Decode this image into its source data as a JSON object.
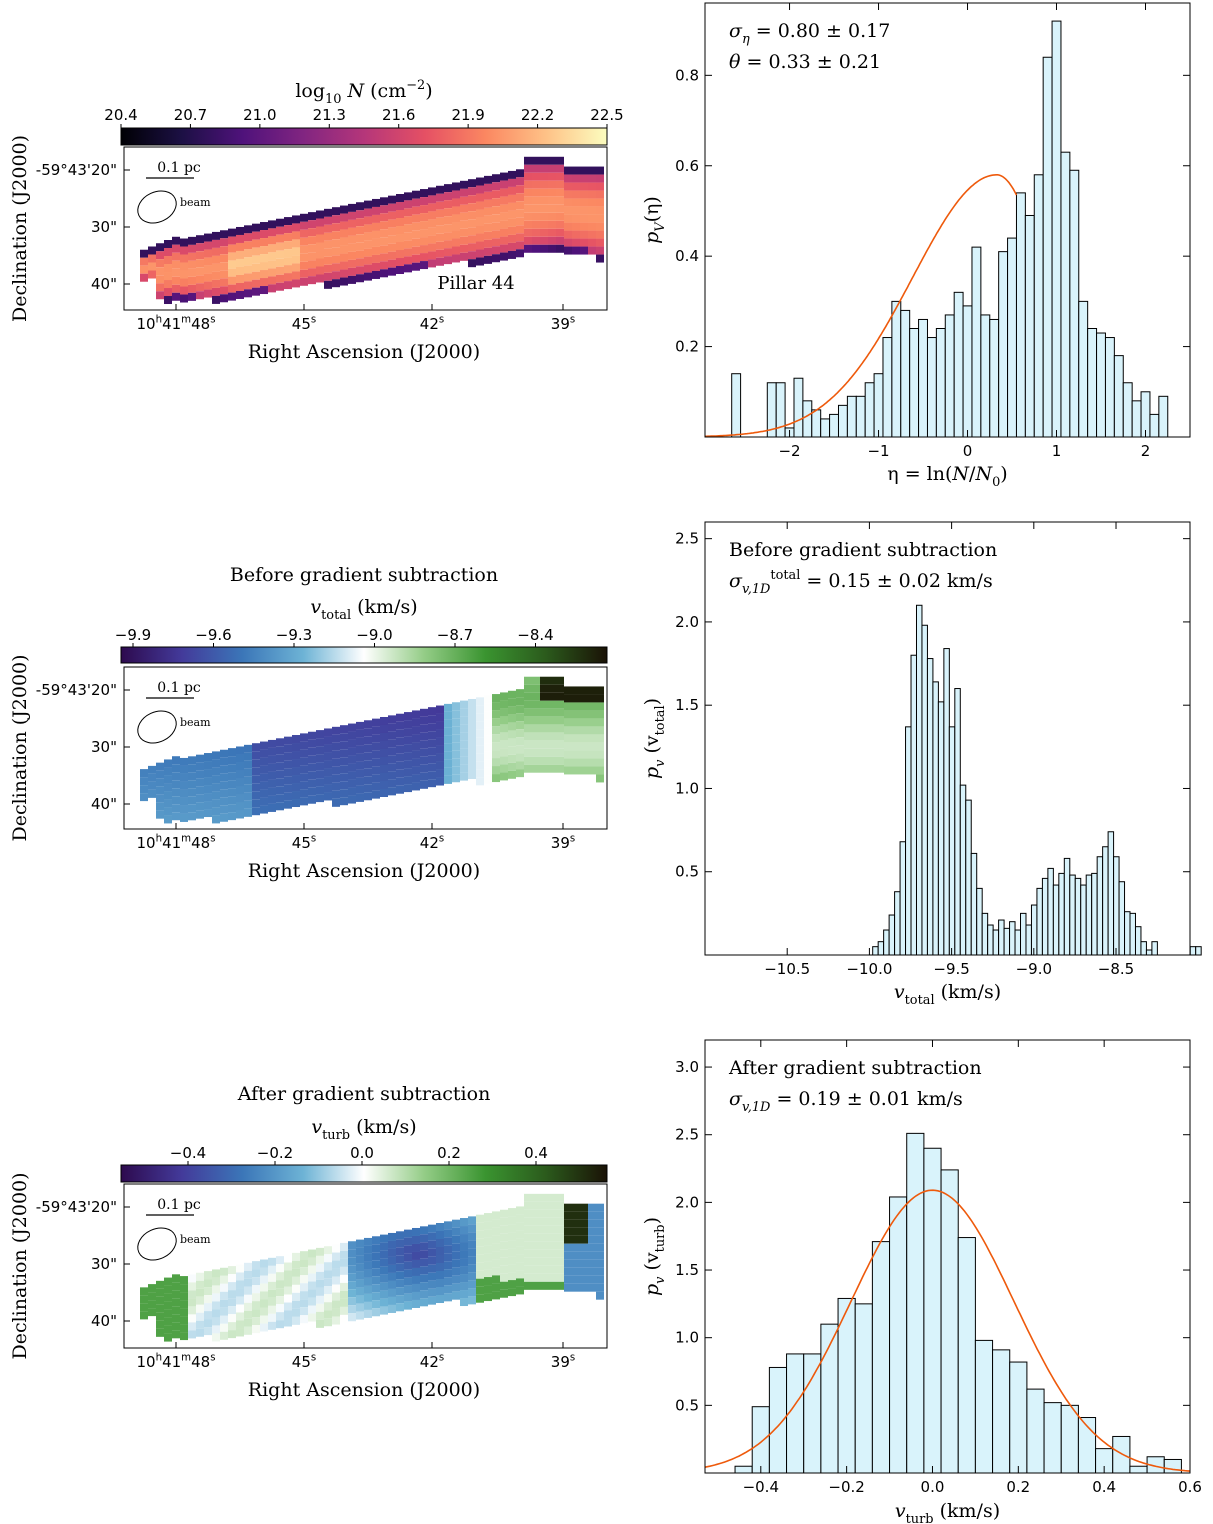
{
  "maps": [
    {
      "title": "",
      "colorbar": {
        "label_base": "log",
        "label_sub": "10",
        "label_var": "N",
        "label_unit": "(cm",
        "label_exp": "−2",
        "label_close": ")",
        "ticks": [
          "20.4",
          "20.7",
          "21.0",
          "21.3",
          "21.6",
          "21.9",
          "22.2",
          "22.5"
        ],
        "colormap": "magma"
      },
      "ylabel": "Declination (J2000)",
      "xlabel": "Right Ascension (J2000)",
      "ytick_labels": [
        "-59°43'20\"",
        "30\"",
        "40\""
      ],
      "xtick_labels": [
        {
          "main": "10",
          "sup1": "h",
          "mid": "41",
          "sup2": "m",
          "tail": "48",
          "sup3": "s"
        },
        {
          "main": "45",
          "sup3": "s"
        },
        {
          "main": "42",
          "sup3": "s"
        },
        {
          "main": "39",
          "sup3": "s"
        }
      ],
      "scalebar_label": "0.1 pc",
      "beam_label": "beam",
      "annotation": "Pillar 44"
    },
    {
      "title": "Before gradient subtraction",
      "colorbar": {
        "label_var": "v",
        "label_sub": "total",
        "label_unit": "(km/s)",
        "ticks": [
          "−9.9",
          "−9.6",
          "−9.3",
          "−9.0",
          "−8.7",
          "−8.4"
        ],
        "colormap": "diverging blue-white-green"
      },
      "ylabel": "Declination (J2000)",
      "xlabel": "Right Ascension (J2000)",
      "ytick_labels": [
        "-59°43'20\"",
        "30\"",
        "40\""
      ],
      "xtick_labels": [
        {
          "main": "10",
          "sup1": "h",
          "mid": "41",
          "sup2": "m",
          "tail": "48",
          "sup3": "s"
        },
        {
          "main": "45",
          "sup3": "s"
        },
        {
          "main": "42",
          "sup3": "s"
        },
        {
          "main": "39",
          "sup3": "s"
        }
      ],
      "scalebar_label": "0.1 pc",
      "beam_label": "beam"
    },
    {
      "title": "After gradient subtraction",
      "colorbar": {
        "label_var": "v",
        "label_sub": "turb",
        "label_unit": "(km/s)",
        "ticks": [
          "−0.4",
          "−0.2",
          "0.0",
          "0.2",
          "0.4"
        ],
        "colormap": "diverging blue-white-green"
      },
      "ylabel": "Declination (J2000)",
      "xlabel": "Right Ascension (J2000)",
      "ytick_labels": [
        "-59°43'20\"",
        "30\"",
        "40\""
      ],
      "xtick_labels": [
        {
          "main": "10",
          "sup1": "h",
          "mid": "41",
          "sup2": "m",
          "tail": "48",
          "sup3": "s"
        },
        {
          "main": "45",
          "sup3": "s"
        },
        {
          "main": "42",
          "sup3": "s"
        },
        {
          "main": "39",
          "sup3": "s"
        }
      ],
      "scalebar_label": "0.1 pc",
      "beam_label": "beam"
    }
  ],
  "colors": {
    "bar_fill": "#d9f3fb",
    "bar_edge": "#000000",
    "fit_line": "#ee5a0c",
    "magma": [
      "#000004",
      "#1c1044",
      "#4f127b",
      "#812581",
      "#b5367a",
      "#e55064",
      "#fb8761",
      "#fec287",
      "#fcfdbf"
    ],
    "diverging": [
      "#2d0a4e",
      "#433a9a",
      "#3b76b8",
      "#6db3d5",
      "#ffffff",
      "#93cc86",
      "#3a9430",
      "#2b5a1c",
      "#1a1206"
    ]
  },
  "chart_data": [
    {
      "type": "bar",
      "subtype": "histogram",
      "annotations": [
        "σ_η = 0.80 ± 0.17",
        "θ = 0.33 ± 0.21"
      ],
      "annotation_parts": [
        {
          "a": "σ",
          "sub": "η",
          "b": " = 0.80 ± 0.17"
        },
        {
          "a": "θ",
          "b": " = 0.33 ± 0.21"
        }
      ],
      "xlabel": "η = ln(N/N0)",
      "xlabel_parts": {
        "a": "η = ln(",
        "b": "N",
        "c": "/",
        "d": "N",
        "sub": "0",
        "e": ")"
      },
      "ylabel": "pV(η)",
      "ylabel_parts": {
        "a": "p",
        "sub": "V",
        "b": "(η)"
      },
      "xlim": [
        -2.95,
        2.5
      ],
      "ylim": [
        0,
        0.96
      ],
      "xticks": [
        -2,
        -1,
        0,
        1,
        2
      ],
      "xtick_labels": [
        "−2",
        "−1",
        "0",
        "1",
        "2"
      ],
      "yticks": [
        0.2,
        0.4,
        0.6,
        0.8
      ],
      "ytick_labels": [
        "0.2",
        "0.4",
        "0.6",
        "0.8"
      ],
      "bin_start": -2.65,
      "bin_width": 0.1,
      "values": [
        0.14,
        0.0,
        0.0,
        0.0,
        0.12,
        0.12,
        0.02,
        0.13,
        0.08,
        0.06,
        0.04,
        0.05,
        0.07,
        0.09,
        0.09,
        0.12,
        0.14,
        0.22,
        0.3,
        0.28,
        0.24,
        0.26,
        0.22,
        0.24,
        0.27,
        0.32,
        0.29,
        0.42,
        0.27,
        0.26,
        0.41,
        0.44,
        0.54,
        0.49,
        0.58,
        0.84,
        0.92,
        0.63,
        0.59,
        0.3,
        0.24,
        0.23,
        0.22,
        0.18,
        0.12,
        0.08,
        0.1,
        0.05,
        0.09
      ],
      "fit": {
        "type": "skew-normal",
        "x_range": [
          -2.95,
          0.55
        ],
        "peak_x": 0.33,
        "peak_y": 0.58
      }
    },
    {
      "type": "bar",
      "subtype": "histogram",
      "annotations": [
        "Before gradient subtraction",
        "σ_v,1D^total = 0.15 ± 0.02 km/s"
      ],
      "annotation_parts": [
        {
          "text": "Before gradient subtraction"
        },
        {
          "a": "σ",
          "sub": "v,1D",
          "sup": "total",
          "b": " = 0.15 ± 0.02 km/s"
        }
      ],
      "xlabel": "v_total (km/s)",
      "xlabel_parts": {
        "a": "v",
        "sub": "total",
        "b": " (km/s)"
      },
      "ylabel": "p_v (v_total)",
      "ylabel_parts": {
        "a": "p",
        "sub": "v",
        "b": " (v",
        "sub2": "total",
        "c": ")"
      },
      "xlim": [
        -11.0,
        -8.05
      ],
      "ylim": [
        0,
        2.6
      ],
      "xticks": [
        -10.5,
        -10.0,
        -9.5,
        -9.0,
        -8.5
      ],
      "xtick_labels": [
        "−10.5",
        "−10.0",
        "−9.5",
        "−9.0",
        "−8.5"
      ],
      "yticks": [
        0.5,
        1.0,
        1.5,
        2.0,
        2.5
      ],
      "ytick_labels": [
        "0.5",
        "1.0",
        "1.5",
        "2.0",
        "2.5"
      ],
      "bin_start": -9.98,
      "bin_width": 0.0333,
      "values": [
        0.05,
        0.08,
        0.15,
        0.24,
        0.38,
        0.68,
        1.37,
        1.8,
        2.1,
        1.98,
        1.78,
        1.64,
        1.52,
        1.84,
        1.37,
        1.6,
        1.02,
        0.93,
        0.61,
        0.4,
        0.25,
        0.18,
        0.15,
        0.21,
        0.16,
        0.2,
        0.15,
        0.25,
        0.18,
        0.3,
        0.4,
        0.46,
        0.52,
        0.42,
        0.49,
        0.58,
        0.48,
        0.46,
        0.42,
        0.48,
        0.49,
        0.59,
        0.65,
        0.74,
        0.59,
        0.44,
        0.26,
        0.25,
        0.17,
        0.08,
        0.03,
        0.08,
        0.0,
        0.0,
        0.0,
        0.0,
        0.0,
        0.0,
        0.05,
        0.05
      ]
    },
    {
      "type": "bar",
      "subtype": "histogram",
      "annotations": [
        "After gradient subtraction",
        "σ_v,1D = 0.19 ± 0.01 km/s"
      ],
      "annotation_parts": [
        {
          "text": "After gradient subtraction"
        },
        {
          "a": "σ",
          "sub": "v,1D",
          "b": " = 0.19 ± 0.01 km/s"
        }
      ],
      "xlabel": "v_turb (km/s)",
      "xlabel_parts": {
        "a": "v",
        "sub": "turb",
        "b": " (km/s)"
      },
      "ylabel": "p_v (v_turb)",
      "ylabel_parts": {
        "a": "p",
        "sub": "v",
        "b": " (v",
        "sub2": "turb",
        "c": ")"
      },
      "xlim": [
        -0.53,
        0.6
      ],
      "ylim": [
        0,
        3.2
      ],
      "xticks": [
        -0.4,
        -0.2,
        0.0,
        0.2,
        0.4,
        0.6
      ],
      "xtick_labels": [
        "−0.4",
        "−0.2",
        "0.0",
        "0.2",
        "0.4",
        "0.6"
      ],
      "yticks": [
        0.5,
        1.0,
        1.5,
        2.0,
        2.5,
        3.0
      ],
      "ytick_labels": [
        "0.5",
        "1.0",
        "1.5",
        "2.0",
        "2.5",
        "3.0"
      ],
      "bin_start": -0.46,
      "bin_width": 0.04,
      "values": [
        0.05,
        0.49,
        0.78,
        0.88,
        0.88,
        1.1,
        1.29,
        1.25,
        1.71,
        2.04,
        2.51,
        2.4,
        2.24,
        1.74,
        0.98,
        0.91,
        0.82,
        0.62,
        0.52,
        0.5,
        0.41,
        0.18,
        0.27,
        0.05,
        0.12,
        0.1
      ],
      "fit": {
        "type": "gaussian",
        "mean": 0.0,
        "sigma": 0.19,
        "peak_y": 2.09,
        "x_range": [
          -0.53,
          0.6
        ]
      }
    }
  ]
}
